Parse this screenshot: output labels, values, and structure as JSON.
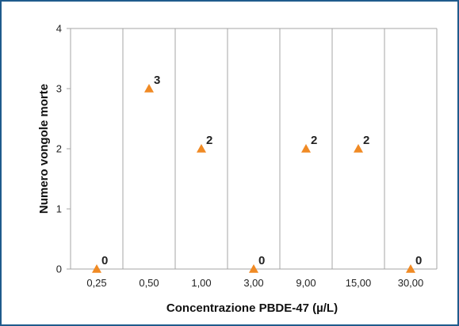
{
  "colors": {
    "frame": "#1f5b8c",
    "grid": "#a6a6a6",
    "marker": "#f08a24"
  },
  "chart_data": {
    "type": "scatter",
    "title": "",
    "xlabel": "Concentrazione PBDE-47 (µ/L)",
    "ylabel": "Numero vongole morte",
    "categories": [
      "0,25",
      "0,50",
      "1,00",
      "3,00",
      "9,00",
      "15,00",
      "30,00"
    ],
    "values": [
      0,
      3,
      2,
      0,
      2,
      2,
      0
    ],
    "data_labels": [
      "0",
      "3",
      "2",
      "0",
      "2",
      "2",
      "0"
    ],
    "y_ticks": [
      "0",
      "1",
      "2",
      "3",
      "4"
    ],
    "ylim": [
      0,
      4
    ],
    "grid": "vertical category separators",
    "marker": "triangle",
    "legend": "none"
  }
}
